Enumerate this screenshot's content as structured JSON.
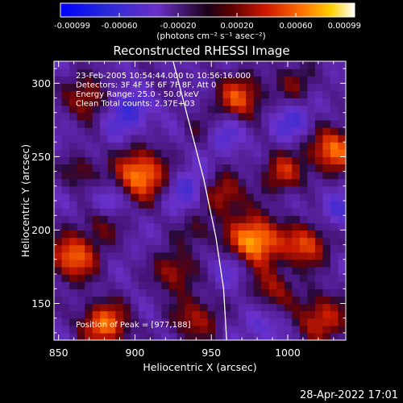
{
  "chart_data": {
    "type": "heatmap",
    "title": "Reconstructed RHESSI Image",
    "xlabel": "Heliocentric X (arcsec)",
    "ylabel": "Heliocentric Y (arcsec)",
    "xlim": [
      847,
      1038
    ],
    "ylim": [
      125,
      315
    ],
    "xticks": [
      850,
      900,
      950,
      1000
    ],
    "yticks": [
      150,
      200,
      250,
      300
    ],
    "colorbar": {
      "ticks": [
        "-0.00099",
        "-0.00060",
        "-0.00020",
        "0.00020",
        "0.00060",
        "0.00099"
      ],
      "unit_label": "(photons cm⁻² s⁻¹ asec⁻²)",
      "range": [
        -0.00099,
        0.00099
      ]
    },
    "annotations": [
      "23-Feb-2005 10:54:44.000 to 10:56:16.000",
      "Detectors: 3F 4F 5F 6F 7F 8F, Att 0",
      "Energy Range: 25.0 - 50.0 keV",
      "Clean     Total counts: 2.37E+03"
    ],
    "peak_label": "Position of Peak = [977,188]",
    "peak": [
      977,
      188
    ],
    "limb_curve": [
      [
        925,
        315
      ],
      [
        935,
        275
      ],
      [
        945,
        235
      ],
      [
        953,
        195
      ],
      [
        958,
        160
      ],
      [
        960,
        125
      ]
    ],
    "grid_nx": 38,
    "grid_ny": 38,
    "peak_value": 0.00099,
    "sources": [
      [
        904,
        238,
        0.9,
        12
      ],
      [
        978,
        193,
        1.0,
        12
      ],
      [
        1030,
        255,
        0.8,
        11
      ],
      [
        1012,
        190,
        0.7,
        10
      ],
      [
        860,
        182,
        0.8,
        11
      ],
      [
        880,
        136,
        0.8,
        11
      ],
      [
        968,
        290,
        0.7,
        11
      ],
      [
        1022,
        140,
        0.6,
        12
      ],
      [
        958,
        225,
        0.55,
        10
      ],
      [
        925,
        172,
        0.5,
        10
      ],
      [
        870,
        290,
        0.55,
        11
      ],
      [
        997,
        240,
        0.55,
        10
      ],
      [
        940,
        140,
        0.5,
        11
      ],
      [
        918,
        300,
        0.4,
        10
      ],
      [
        865,
        240,
        0.35,
        9
      ],
      [
        1005,
        300,
        0.35,
        10
      ],
      [
        945,
        270,
        0.3,
        9
      ],
      [
        880,
        205,
        0.35,
        9
      ],
      [
        990,
        160,
        0.45,
        10
      ],
      [
        940,
        200,
        0.3,
        9
      ]
    ],
    "negative_sources": [
      [
        893,
        283,
        0.4,
        12
      ],
      [
        935,
        228,
        0.35,
        10
      ],
      [
        957,
        268,
        0.35,
        10
      ],
      [
        883,
        220,
        0.3,
        9
      ],
      [
        1003,
        275,
        0.3,
        10
      ],
      [
        1033,
        215,
        0.25,
        9
      ],
      [
        920,
        300,
        0.3,
        10
      ],
      [
        963,
        175,
        0.25,
        9
      ],
      [
        985,
        135,
        0.2,
        10
      ]
    ]
  },
  "footer": {
    "timestamp": "28-Apr-2022 17:01"
  }
}
